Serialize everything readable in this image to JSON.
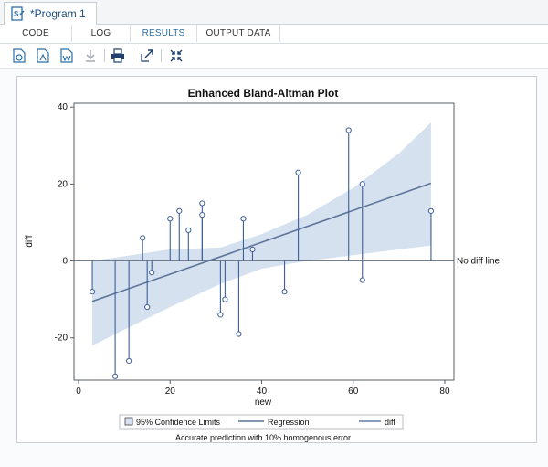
{
  "window": {
    "tab_title": "*Program 1"
  },
  "subtabs": [
    {
      "label": "CODE"
    },
    {
      "label": "LOG"
    },
    {
      "label": "RESULTS"
    },
    {
      "label": "OUTPUT DATA"
    }
  ],
  "toolbar": {
    "icons": [
      "html-download-icon",
      "pdf-download-icon",
      "word-download-icon",
      "download-icon",
      "print-icon",
      "open-new-window-icon",
      "collapse-icon"
    ]
  },
  "colors": {
    "accent": "#2b6fa8",
    "band": "#d6e1f0",
    "line": "#5c7599",
    "spike": "#3d5f98"
  },
  "chart_data": {
    "type": "scatter",
    "title": "Enhanced Bland-Altman Plot",
    "xlabel": "new",
    "ylabel": "diff",
    "xlim": [
      -1,
      82
    ],
    "ylim": [
      -31,
      41
    ],
    "xticks": [
      0,
      20,
      40,
      60,
      80
    ],
    "yticks": [
      -20,
      0,
      20,
      40
    ],
    "reference_label": "No diff line",
    "footnote": "Accurate prediction with 10% homogenous error",
    "legend": [
      {
        "label": "95% Confidence Limits",
        "kind": "band"
      },
      {
        "label": "Regression",
        "kind": "line"
      },
      {
        "label": "diff",
        "kind": "spike"
      }
    ],
    "points": {
      "x": [
        3,
        8,
        11,
        14,
        15,
        16,
        20,
        22,
        24,
        27,
        27,
        31,
        32,
        35,
        36,
        38,
        45,
        48,
        59,
        62,
        62,
        77
      ],
      "y": [
        -8,
        -30,
        -26,
        6,
        -12,
        -3,
        11,
        13,
        8,
        15,
        12,
        -14,
        -10,
        -19,
        11,
        3,
        -8,
        23,
        34,
        -5,
        20,
        13
      ]
    },
    "regression": {
      "x": [
        3,
        77
      ],
      "y": [
        -10.5,
        20.2
      ]
    },
    "confidence_band": {
      "x": [
        3,
        20,
        31,
        40,
        50,
        60,
        70,
        77
      ],
      "upper": [
        0,
        3,
        3.5,
        7,
        12,
        19,
        28,
        36
      ],
      "lower": [
        -22,
        -12,
        -6,
        -2,
        0,
        1.5,
        3,
        4
      ]
    }
  }
}
